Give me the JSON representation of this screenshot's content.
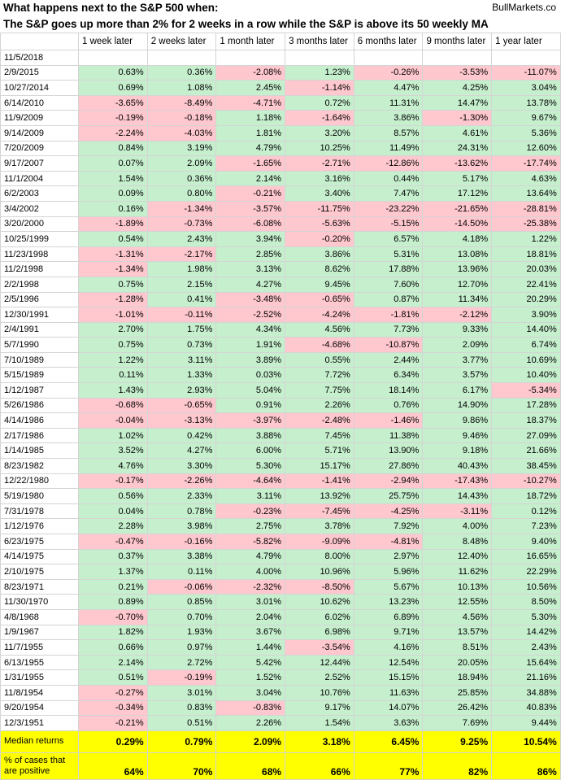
{
  "header": {
    "title_line1": "What happens next to the S&P 500 when:",
    "title_line2": "The S&P goes up more than 2% for 2 weeks in a row while the S&P is above its 50 weekly MA",
    "source": "BullMarkets.co"
  },
  "columns": [
    "",
    "1 week later",
    "2 weeks later",
    "1 month later",
    "3 months later",
    "6 months later",
    "9 months later",
    "1 year later"
  ],
  "colors": {
    "positive": "#c6efce",
    "negative": "#ffc7ce",
    "summary": "#ffff00"
  },
  "rows": [
    {
      "date": "11/5/2018",
      "values": [
        "",
        "",
        "",
        "",
        "",
        "",
        ""
      ]
    },
    {
      "date": "2/9/2015",
      "values": [
        "0.63%",
        "0.36%",
        "-2.08%",
        "1.23%",
        "-0.26%",
        "-3.53%",
        "-11.07%"
      ]
    },
    {
      "date": "10/27/2014",
      "values": [
        "0.69%",
        "1.08%",
        "2.45%",
        "-1.14%",
        "4.47%",
        "4.25%",
        "3.04%"
      ]
    },
    {
      "date": "6/14/2010",
      "values": [
        "-3.65%",
        "-8.49%",
        "-4.71%",
        "0.72%",
        "11.31%",
        "14.47%",
        "13.78%"
      ]
    },
    {
      "date": "11/9/2009",
      "values": [
        "-0.19%",
        "-0.18%",
        "1.18%",
        "-1.64%",
        "3.86%",
        "-1.30%",
        "9.67%"
      ]
    },
    {
      "date": "9/14/2009",
      "values": [
        "-2.24%",
        "-4.03%",
        "1.81%",
        "3.20%",
        "8.57%",
        "4.61%",
        "5.36%"
      ]
    },
    {
      "date": "7/20/2009",
      "values": [
        "0.84%",
        "3.19%",
        "4.79%",
        "10.25%",
        "11.49%",
        "24.31%",
        "12.60%"
      ]
    },
    {
      "date": "9/17/2007",
      "values": [
        "0.07%",
        "2.09%",
        "-1.65%",
        "-2.71%",
        "-12.86%",
        "-13.62%",
        "-17.74%"
      ]
    },
    {
      "date": "11/1/2004",
      "values": [
        "1.54%",
        "0.36%",
        "2.14%",
        "3.16%",
        "0.44%",
        "5.17%",
        "4.63%"
      ]
    },
    {
      "date": "6/2/2003",
      "values": [
        "0.09%",
        "0.80%",
        "-0.21%",
        "3.40%",
        "7.47%",
        "17.12%",
        "13.64%"
      ]
    },
    {
      "date": "3/4/2002",
      "values": [
        "0.16%",
        "-1.34%",
        "-3.57%",
        "-11.75%",
        "-23.22%",
        "-21.65%",
        "-28.81%"
      ]
    },
    {
      "date": "3/20/2000",
      "values": [
        "-1.89%",
        "-0.73%",
        "-6.08%",
        "-5.63%",
        "-5.15%",
        "-14.50%",
        "-25.38%"
      ]
    },
    {
      "date": "10/25/1999",
      "values": [
        "0.54%",
        "2.43%",
        "3.94%",
        "-0.20%",
        "6.57%",
        "4.18%",
        "1.22%"
      ]
    },
    {
      "date": "11/23/1998",
      "values": [
        "-1.31%",
        "-2.17%",
        "2.85%",
        "3.86%",
        "5.31%",
        "13.08%",
        "18.81%"
      ]
    },
    {
      "date": "11/2/1998",
      "values": [
        "-1.34%",
        "1.98%",
        "3.13%",
        "8.62%",
        "17.88%",
        "13.96%",
        "20.03%"
      ]
    },
    {
      "date": "2/2/1998",
      "values": [
        "0.75%",
        "2.15%",
        "4.27%",
        "9.45%",
        "7.60%",
        "12.70%",
        "22.41%"
      ]
    },
    {
      "date": "2/5/1996",
      "values": [
        "-1.28%",
        "0.41%",
        "-3.48%",
        "-0.65%",
        "0.87%",
        "11.34%",
        "20.29%"
      ]
    },
    {
      "date": "12/30/1991",
      "values": [
        "-1.01%",
        "-0.11%",
        "-2.52%",
        "-4.24%",
        "-1.81%",
        "-2.12%",
        "3.90%"
      ]
    },
    {
      "date": "2/4/1991",
      "values": [
        "2.70%",
        "1.75%",
        "4.34%",
        "4.56%",
        "7.73%",
        "9.33%",
        "14.40%"
      ]
    },
    {
      "date": "5/7/1990",
      "values": [
        "0.75%",
        "0.73%",
        "1.91%",
        "-4.68%",
        "-10.87%",
        "2.09%",
        "6.74%"
      ]
    },
    {
      "date": "7/10/1989",
      "values": [
        "1.22%",
        "3.11%",
        "3.89%",
        "0.55%",
        "2.44%",
        "3.77%",
        "10.69%"
      ]
    },
    {
      "date": "5/15/1989",
      "values": [
        "0.11%",
        "1.33%",
        "0.03%",
        "7.72%",
        "6.34%",
        "3.57%",
        "10.40%"
      ]
    },
    {
      "date": "1/12/1987",
      "values": [
        "1.43%",
        "2.93%",
        "5.04%",
        "7.75%",
        "18.14%",
        "6.17%",
        "-5.34%"
      ]
    },
    {
      "date": "5/26/1986",
      "values": [
        "-0.68%",
        "-0.65%",
        "0.91%",
        "2.26%",
        "0.76%",
        "14.90%",
        "17.28%"
      ]
    },
    {
      "date": "4/14/1986",
      "values": [
        "-0.04%",
        "-3.13%",
        "-3.97%",
        "-2.48%",
        "-1.46%",
        "9.86%",
        "18.37%"
      ]
    },
    {
      "date": "2/17/1986",
      "values": [
        "1.02%",
        "0.42%",
        "3.88%",
        "7.45%",
        "11.38%",
        "9.46%",
        "27.09%"
      ]
    },
    {
      "date": "1/14/1985",
      "values": [
        "3.52%",
        "4.27%",
        "6.00%",
        "5.71%",
        "13.90%",
        "9.18%",
        "21.66%"
      ]
    },
    {
      "date": "8/23/1982",
      "values": [
        "4.76%",
        "3.30%",
        "5.30%",
        "15.17%",
        "27.86%",
        "40.43%",
        "38.45%"
      ]
    },
    {
      "date": "12/22/1980",
      "values": [
        "-0.17%",
        "-2.26%",
        "-4.64%",
        "-1.41%",
        "-2.94%",
        "-17.43%",
        "-10.27%"
      ]
    },
    {
      "date": "5/19/1980",
      "values": [
        "0.56%",
        "2.33%",
        "3.11%",
        "13.92%",
        "25.75%",
        "14.43%",
        "18.72%"
      ]
    },
    {
      "date": "7/31/1978",
      "values": [
        "0.04%",
        "0.78%",
        "-0.23%",
        "-7.45%",
        "-4.25%",
        "-3.11%",
        "0.12%"
      ]
    },
    {
      "date": "1/12/1976",
      "values": [
        "2.28%",
        "3.98%",
        "2.75%",
        "3.78%",
        "7.92%",
        "4.00%",
        "7.23%"
      ]
    },
    {
      "date": "6/23/1975",
      "values": [
        "-0.47%",
        "-0.16%",
        "-5.82%",
        "-9.09%",
        "-4.81%",
        "8.48%",
        "9.40%"
      ]
    },
    {
      "date": "4/14/1975",
      "values": [
        "0.37%",
        "3.38%",
        "4.79%",
        "8.00%",
        "2.97%",
        "12.40%",
        "16.65%"
      ]
    },
    {
      "date": "2/10/1975",
      "values": [
        "1.37%",
        "0.11%",
        "4.00%",
        "10.96%",
        "5.96%",
        "11.62%",
        "22.29%"
      ]
    },
    {
      "date": "8/23/1971",
      "values": [
        "0.21%",
        "-0.06%",
        "-2.32%",
        "-8.50%",
        "5.67%",
        "10.13%",
        "10.56%"
      ]
    },
    {
      "date": "11/30/1970",
      "values": [
        "0.89%",
        "0.85%",
        "3.01%",
        "10.62%",
        "13.23%",
        "12.55%",
        "8.50%"
      ]
    },
    {
      "date": "4/8/1968",
      "values": [
        "-0.70%",
        "0.70%",
        "2.04%",
        "6.02%",
        "6.89%",
        "4.56%",
        "5.30%"
      ]
    },
    {
      "date": "1/9/1967",
      "values": [
        "1.82%",
        "1.93%",
        "3.67%",
        "6.98%",
        "9.71%",
        "13.57%",
        "14.42%"
      ]
    },
    {
      "date": "11/7/1955",
      "values": [
        "0.66%",
        "0.97%",
        "1.44%",
        "-3.54%",
        "4.16%",
        "8.51%",
        "2.43%"
      ]
    },
    {
      "date": "6/13/1955",
      "values": [
        "2.14%",
        "2.72%",
        "5.42%",
        "12.44%",
        "12.54%",
        "20.05%",
        "15.64%"
      ]
    },
    {
      "date": "1/31/1955",
      "values": [
        "0.51%",
        "-0.19%",
        "1.52%",
        "2.52%",
        "15.15%",
        "18.94%",
        "21.16%"
      ]
    },
    {
      "date": "11/8/1954",
      "values": [
        "-0.27%",
        "3.01%",
        "3.04%",
        "10.76%",
        "11.63%",
        "25.85%",
        "34.88%"
      ]
    },
    {
      "date": "9/20/1954",
      "values": [
        "-0.34%",
        "0.83%",
        "-0.83%",
        "9.17%",
        "14.07%",
        "26.42%",
        "40.83%"
      ]
    },
    {
      "date": "12/3/1951",
      "values": [
        "-0.21%",
        "0.51%",
        "2.26%",
        "1.54%",
        "3.63%",
        "7.69%",
        "9.44%"
      ]
    }
  ],
  "summary": {
    "median_label": "Median returns",
    "median": [
      "0.29%",
      "0.79%",
      "2.09%",
      "3.18%",
      "6.45%",
      "9.25%",
      "10.54%"
    ],
    "positive_label": "% of cases that are positive",
    "positive": [
      "64%",
      "70%",
      "68%",
      "66%",
      "77%",
      "82%",
      "86%"
    ]
  }
}
